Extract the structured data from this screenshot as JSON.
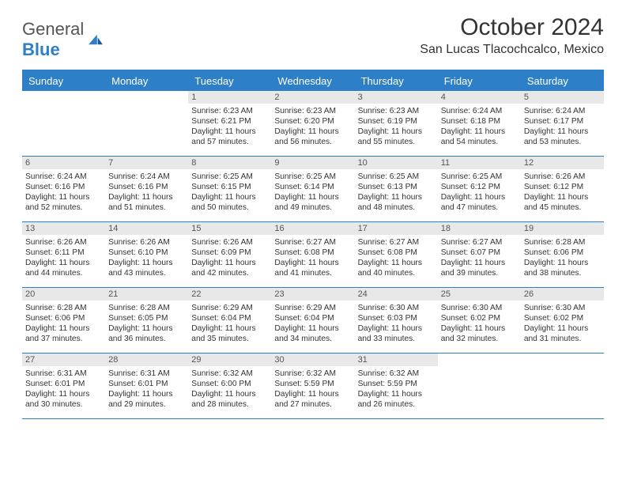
{
  "logo": {
    "text1": "General",
    "text2": "Blue"
  },
  "title": "October 2024",
  "location": "San Lucas Tlacochcalco, Mexico",
  "colors": {
    "accent": "#2d7fc8",
    "daynum_bg": "#e8e8e8",
    "text": "#333333"
  },
  "dayNames": [
    "Sunday",
    "Monday",
    "Tuesday",
    "Wednesday",
    "Thursday",
    "Friday",
    "Saturday"
  ],
  "firstDayOffset": 2,
  "days": [
    {
      "n": 1,
      "sr": "6:23 AM",
      "ss": "6:21 PM",
      "dl": "11 hours and 57 minutes."
    },
    {
      "n": 2,
      "sr": "6:23 AM",
      "ss": "6:20 PM",
      "dl": "11 hours and 56 minutes."
    },
    {
      "n": 3,
      "sr": "6:23 AM",
      "ss": "6:19 PM",
      "dl": "11 hours and 55 minutes."
    },
    {
      "n": 4,
      "sr": "6:24 AM",
      "ss": "6:18 PM",
      "dl": "11 hours and 54 minutes."
    },
    {
      "n": 5,
      "sr": "6:24 AM",
      "ss": "6:17 PM",
      "dl": "11 hours and 53 minutes."
    },
    {
      "n": 6,
      "sr": "6:24 AM",
      "ss": "6:16 PM",
      "dl": "11 hours and 52 minutes."
    },
    {
      "n": 7,
      "sr": "6:24 AM",
      "ss": "6:16 PM",
      "dl": "11 hours and 51 minutes."
    },
    {
      "n": 8,
      "sr": "6:25 AM",
      "ss": "6:15 PM",
      "dl": "11 hours and 50 minutes."
    },
    {
      "n": 9,
      "sr": "6:25 AM",
      "ss": "6:14 PM",
      "dl": "11 hours and 49 minutes."
    },
    {
      "n": 10,
      "sr": "6:25 AM",
      "ss": "6:13 PM",
      "dl": "11 hours and 48 minutes."
    },
    {
      "n": 11,
      "sr": "6:25 AM",
      "ss": "6:12 PM",
      "dl": "11 hours and 47 minutes."
    },
    {
      "n": 12,
      "sr": "6:26 AM",
      "ss": "6:12 PM",
      "dl": "11 hours and 45 minutes."
    },
    {
      "n": 13,
      "sr": "6:26 AM",
      "ss": "6:11 PM",
      "dl": "11 hours and 44 minutes."
    },
    {
      "n": 14,
      "sr": "6:26 AM",
      "ss": "6:10 PM",
      "dl": "11 hours and 43 minutes."
    },
    {
      "n": 15,
      "sr": "6:26 AM",
      "ss": "6:09 PM",
      "dl": "11 hours and 42 minutes."
    },
    {
      "n": 16,
      "sr": "6:27 AM",
      "ss": "6:08 PM",
      "dl": "11 hours and 41 minutes."
    },
    {
      "n": 17,
      "sr": "6:27 AM",
      "ss": "6:08 PM",
      "dl": "11 hours and 40 minutes."
    },
    {
      "n": 18,
      "sr": "6:27 AM",
      "ss": "6:07 PM",
      "dl": "11 hours and 39 minutes."
    },
    {
      "n": 19,
      "sr": "6:28 AM",
      "ss": "6:06 PM",
      "dl": "11 hours and 38 minutes."
    },
    {
      "n": 20,
      "sr": "6:28 AM",
      "ss": "6:06 PM",
      "dl": "11 hours and 37 minutes."
    },
    {
      "n": 21,
      "sr": "6:28 AM",
      "ss": "6:05 PM",
      "dl": "11 hours and 36 minutes."
    },
    {
      "n": 22,
      "sr": "6:29 AM",
      "ss": "6:04 PM",
      "dl": "11 hours and 35 minutes."
    },
    {
      "n": 23,
      "sr": "6:29 AM",
      "ss": "6:04 PM",
      "dl": "11 hours and 34 minutes."
    },
    {
      "n": 24,
      "sr": "6:30 AM",
      "ss": "6:03 PM",
      "dl": "11 hours and 33 minutes."
    },
    {
      "n": 25,
      "sr": "6:30 AM",
      "ss": "6:02 PM",
      "dl": "11 hours and 32 minutes."
    },
    {
      "n": 26,
      "sr": "6:30 AM",
      "ss": "6:02 PM",
      "dl": "11 hours and 31 minutes."
    },
    {
      "n": 27,
      "sr": "6:31 AM",
      "ss": "6:01 PM",
      "dl": "11 hours and 30 minutes."
    },
    {
      "n": 28,
      "sr": "6:31 AM",
      "ss": "6:01 PM",
      "dl": "11 hours and 29 minutes."
    },
    {
      "n": 29,
      "sr": "6:32 AM",
      "ss": "6:00 PM",
      "dl": "11 hours and 28 minutes."
    },
    {
      "n": 30,
      "sr": "6:32 AM",
      "ss": "5:59 PM",
      "dl": "11 hours and 27 minutes."
    },
    {
      "n": 31,
      "sr": "6:32 AM",
      "ss": "5:59 PM",
      "dl": "11 hours and 26 minutes."
    }
  ],
  "labels": {
    "sunrise": "Sunrise:",
    "sunset": "Sunset:",
    "daylight": "Daylight:"
  }
}
